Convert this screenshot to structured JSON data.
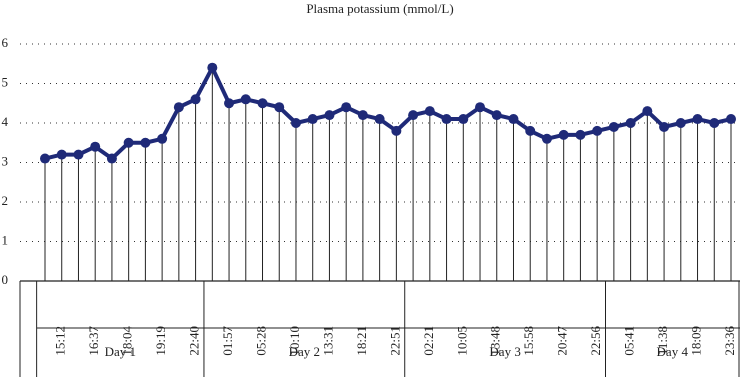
{
  "chart_data": {
    "type": "line",
    "title": "Plasma potassium (mmol/L)",
    "categories": [
      null,
      "15:12",
      null,
      "16:37",
      null,
      "18:04",
      null,
      "19:19",
      null,
      "22:40",
      null,
      "01:57",
      null,
      "05:28",
      null,
      "10:10",
      null,
      "13:31",
      null,
      "18:21",
      null,
      "22:51",
      null,
      "02:21",
      null,
      "10:05",
      null,
      "13:48",
      null,
      "15:58",
      null,
      "20:47",
      null,
      "22:56",
      null,
      "05:41",
      null,
      "11:38",
      null,
      "18:09",
      null,
      "23:36"
    ],
    "groups": [
      {
        "label": "Day 1",
        "count": 10
      },
      {
        "label": "Day 2",
        "count": 12
      },
      {
        "label": "Day 3",
        "count": 12
      },
      {
        "label": "Day 4",
        "count": 8
      }
    ],
    "series": [
      {
        "name": "Plasma potassium",
        "color": "#1f2a78",
        "values": [
          3.1,
          3.2,
          3.2,
          3.4,
          3.1,
          3.5,
          3.5,
          3.6,
          4.4,
          4.6,
          5.4,
          4.5,
          4.6,
          4.5,
          4.4,
          4.0,
          4.1,
          4.2,
          4.4,
          4.2,
          4.1,
          3.8,
          4.2,
          4.3,
          4.1,
          4.1,
          4.4,
          4.2,
          4.1,
          3.8,
          3.6,
          3.7,
          3.7,
          3.8,
          3.9,
          4.0,
          4.3,
          3.9,
          4.0,
          4.1,
          4.0,
          4.1
        ]
      }
    ],
    "ylim": [
      0,
      6
    ],
    "yticks": [
      0,
      1,
      2,
      3,
      4,
      5,
      6
    ],
    "grid": true,
    "drop_lines": true
  }
}
